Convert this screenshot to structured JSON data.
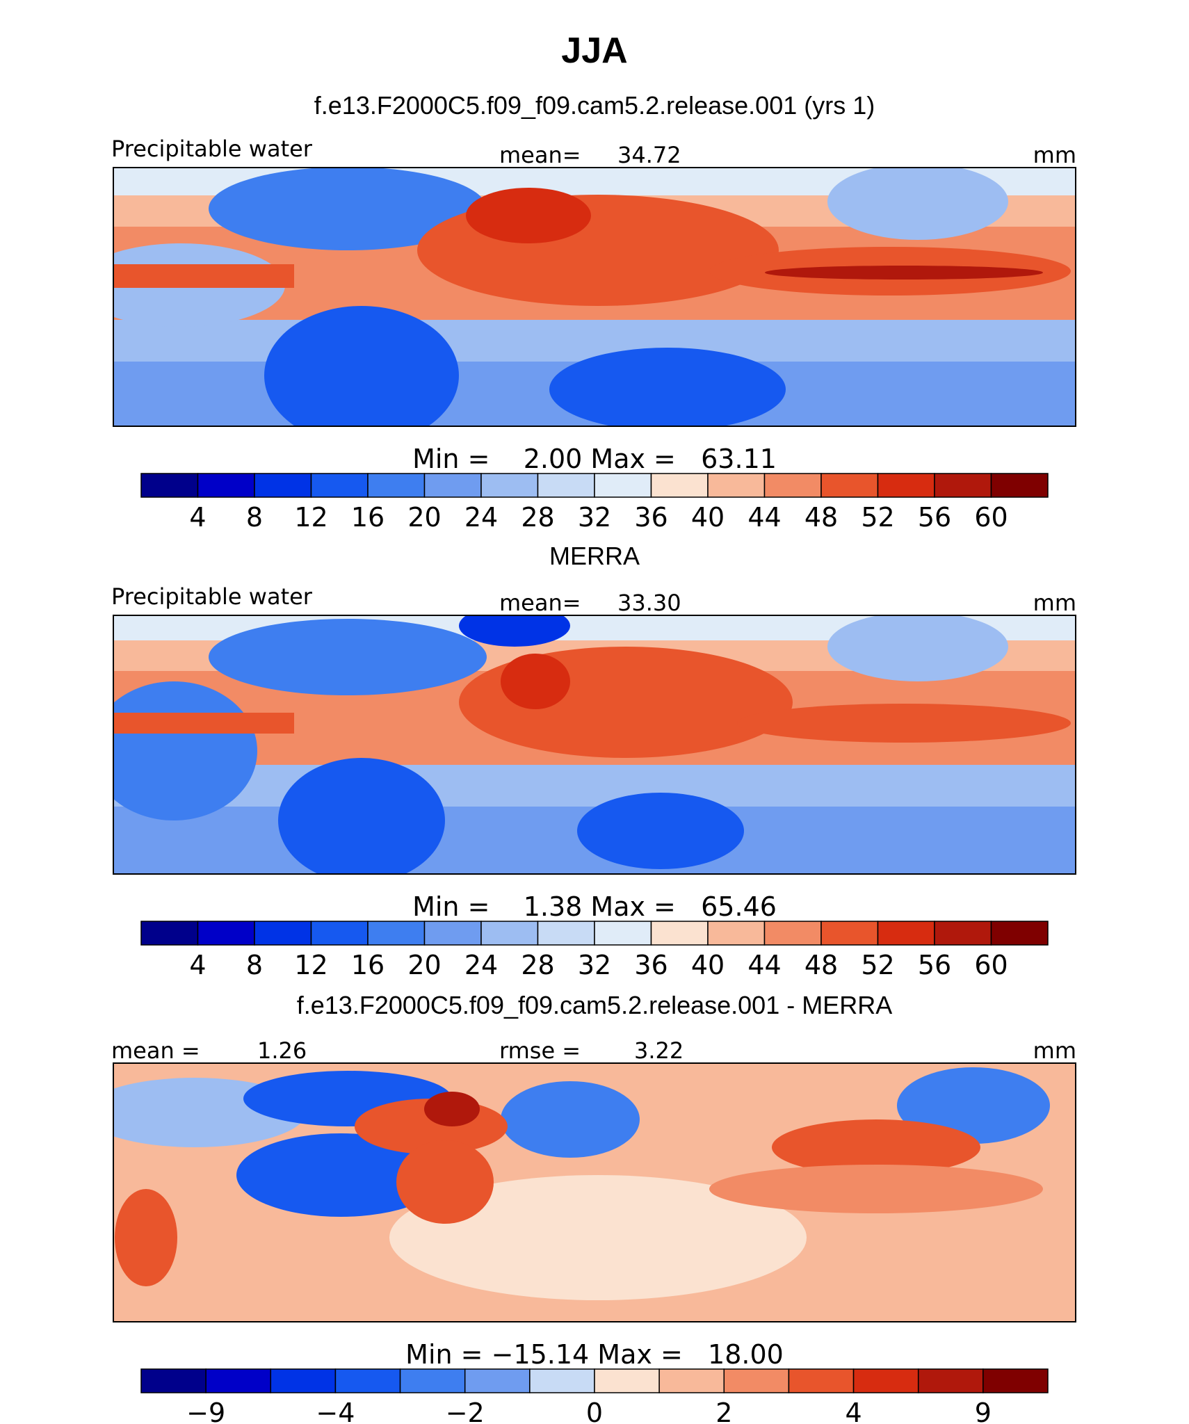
{
  "chart_data": {
    "type": "heatmap",
    "title": "JJA",
    "panels": [
      {
        "title": "f.e13.F2000C5.f09_f09.cam5.2.release.001 (yrs 1)",
        "variable": "Precipitable water",
        "units": "mm",
        "stat1_label": "mean=",
        "stat1_value": "34.72",
        "stat2_label": "",
        "stat2_value": "",
        "minmax": "Min =    2.00 Max =   63.11",
        "colorbar_ticks": [
          "4",
          "8",
          "12",
          "16",
          "20",
          "24",
          "28",
          "32",
          "36",
          "40",
          "44",
          "48",
          "52",
          "56",
          "60"
        ],
        "colorbar_levels": [
          4,
          8,
          12,
          16,
          20,
          24,
          28,
          32,
          36,
          40,
          44,
          48,
          52,
          56,
          60
        ],
        "colorbar_colors": [
          "#00008b",
          "#0000c8",
          "#0033e6",
          "#1659f0",
          "#3e7ef0",
          "#6f9cf0",
          "#9dbdf2",
          "#c8dbf5",
          "#e0ecf8",
          "#fbe2d0",
          "#f8b99a",
          "#f28b65",
          "#e8552c",
          "#d72c10",
          "#b0180c",
          "#7f0000"
        ]
      },
      {
        "title": "MERRA",
        "variable": "Precipitable water",
        "units": "mm",
        "stat1_label": "mean=",
        "stat1_value": "33.30",
        "stat2_label": "",
        "stat2_value": "",
        "minmax": "Min =    1.38 Max =   65.46",
        "colorbar_ticks": [
          "4",
          "8",
          "12",
          "16",
          "20",
          "24",
          "28",
          "32",
          "36",
          "40",
          "44",
          "48",
          "52",
          "56",
          "60"
        ],
        "colorbar_levels": [
          4,
          8,
          12,
          16,
          20,
          24,
          28,
          32,
          36,
          40,
          44,
          48,
          52,
          56,
          60
        ],
        "colorbar_colors": [
          "#00008b",
          "#0000c8",
          "#0033e6",
          "#1659f0",
          "#3e7ef0",
          "#6f9cf0",
          "#9dbdf2",
          "#c8dbf5",
          "#e0ecf8",
          "#fbe2d0",
          "#f8b99a",
          "#f28b65",
          "#e8552c",
          "#d72c10",
          "#b0180c",
          "#7f0000"
        ]
      },
      {
        "title": "f.e13.F2000C5.f09_f09.cam5.2.release.001 - MERRA",
        "variable": "",
        "units": "mm",
        "stat1_label": "mean =",
        "stat1_value": "1.26",
        "stat2_label": "rmse =",
        "stat2_value": "3.22",
        "minmax": "Min = −15.14 Max =   18.00",
        "colorbar_ticks": [
          "−9",
          "",
          "−4",
          "",
          "−2",
          "",
          "0",
          "",
          "2",
          "",
          "4",
          "",
          "9"
        ],
        "colorbar_levels": [
          -9,
          -6,
          -4,
          -3,
          -2,
          -1,
          0,
          1,
          2,
          3,
          4,
          6,
          9
        ],
        "colorbar_colors": [
          "#00008b",
          "#0000c8",
          "#0033e6",
          "#1659f0",
          "#3e7ef0",
          "#6f9cf0",
          "#c8dbf5",
          "#fbe2d0",
          "#f8b99a",
          "#f28b65",
          "#e8552c",
          "#d72c10",
          "#b0180c",
          "#7f0000"
        ]
      }
    ]
  }
}
